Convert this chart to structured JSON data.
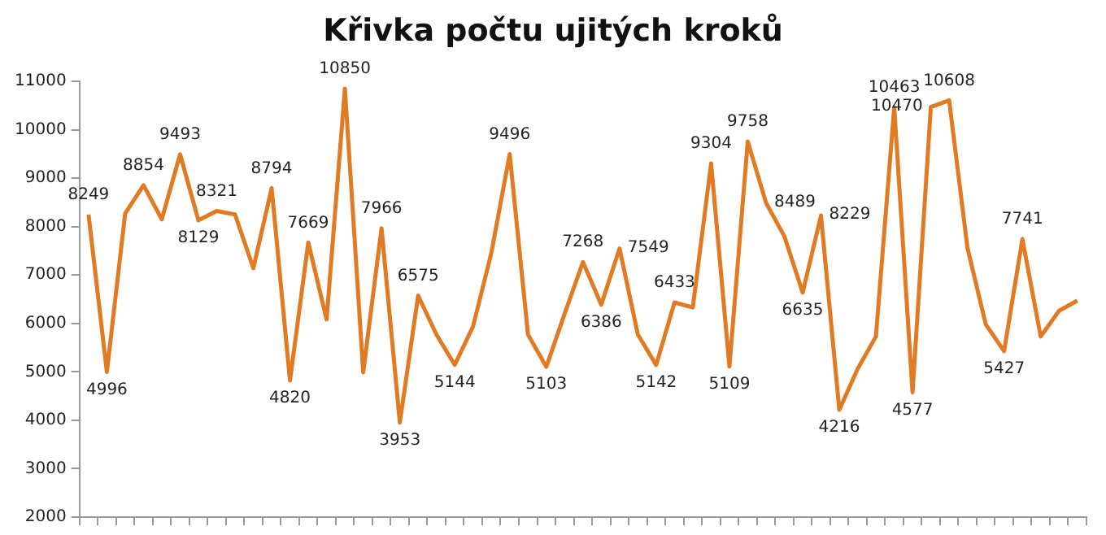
{
  "chart_data": {
    "type": "line",
    "title": "Křivka počtu ujitých kroků",
    "categories": [
      null,
      null,
      null,
      null,
      null,
      null,
      null,
      null,
      null,
      null,
      null,
      null,
      null,
      null,
      null,
      null,
      null,
      null,
      null,
      null,
      null,
      null,
      null,
      null,
      null,
      null,
      null,
      null,
      null,
      null,
      null,
      null,
      null,
      null,
      null,
      null,
      null,
      null,
      null,
      null,
      null,
      null,
      null,
      null,
      null,
      null,
      null,
      null,
      null,
      null,
      null,
      null,
      null,
      null,
      null
    ],
    "series": [
      {
        "color": "#e07b24",
        "values": [
          8249,
          4996,
          8270,
          8854,
          8150,
          9493,
          8129,
          8321,
          8250,
          7140,
          8794,
          4820,
          7669,
          6080,
          10850,
          4990,
          7966,
          3953,
          6575,
          5770,
          5144,
          5940,
          7460,
          9496,
          5770,
          5103,
          6200,
          7268,
          6386,
          7549,
          5770,
          5142,
          6433,
          6330,
          9304,
          5109,
          9758,
          8489,
          7800,
          6635,
          8229,
          4216,
          5060,
          5730,
          10463,
          4577,
          10470,
          10608,
          7560,
          5980,
          5427,
          7741,
          5730,
          6260,
          6470
        ],
        "value_labels": [
          "8249",
          "4996",
          null,
          "8854",
          null,
          "9493",
          "8129",
          "8321",
          null,
          null,
          "8794",
          "4820",
          "7669",
          null,
          "10850",
          null,
          "7966",
          "3953",
          "6575",
          null,
          "5144",
          null,
          null,
          "9496",
          null,
          "5103",
          null,
          "7268",
          "6386",
          "7549",
          null,
          "5142",
          "6433",
          null,
          "9304",
          "5109",
          "9758",
          "8489",
          null,
          "6635",
          "8229",
          "4216",
          null,
          null,
          "10463",
          "4577",
          "10470",
          "10608",
          null,
          null,
          "5427",
          "7741",
          null,
          null,
          null
        ]
      }
    ],
    "ylim": [
      2000,
      11000
    ],
    "yticks": [
      2000,
      3000,
      4000,
      5000,
      6000,
      7000,
      8000,
      9000,
      10000,
      11000
    ],
    "grid": false,
    "legend": false,
    "marker": "none",
    "line_style": "solid",
    "tick_labels": "y"
  }
}
